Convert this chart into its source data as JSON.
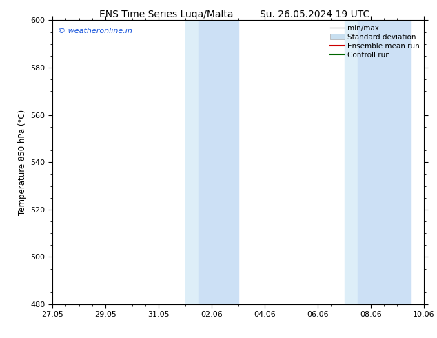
{
  "title_left": "ENS Time Series Luqa/Malta",
  "title_right": "Su. 26.05.2024 19 UTC",
  "ylabel": "Temperature 850 hPa (°C)",
  "xlabel_ticks": [
    "27.05",
    "29.05",
    "31.05",
    "02.06",
    "04.06",
    "06.06",
    "08.06",
    "10.06"
  ],
  "yticks": [
    480,
    500,
    520,
    540,
    560,
    580,
    600
  ],
  "ylim": [
    480,
    600
  ],
  "xlim": [
    0,
    14
  ],
  "x_tick_positions": [
    0,
    2,
    4,
    6,
    8,
    10,
    12,
    14
  ],
  "shading_bands": [
    {
      "x_start": 5.0,
      "x_end": 5.5,
      "color": "#ddeef8"
    },
    {
      "x_start": 5.5,
      "x_end": 7.0,
      "color": "#cce0f5"
    },
    {
      "x_start": 11.0,
      "x_end": 11.5,
      "color": "#ddeef8"
    },
    {
      "x_start": 11.5,
      "x_end": 13.5,
      "color": "#cce0f5"
    }
  ],
  "watermark_text": "© weatheronline.in",
  "watermark_color": "#1a56db",
  "background_color": "#ffffff",
  "legend_items": [
    {
      "label": "min/max",
      "color": "#aaaaaa",
      "lw": 1.0
    },
    {
      "label": "Standard deviation",
      "color": "#c8dff0",
      "lw": 5
    },
    {
      "label": "Ensemble mean run",
      "color": "#cc0000",
      "lw": 1.5
    },
    {
      "label": "Controll run",
      "color": "#006600",
      "lw": 1.5
    }
  ],
  "title_fontsize": 10,
  "tick_fontsize": 8,
  "legend_fontsize": 7.5,
  "ylabel_fontsize": 8.5
}
